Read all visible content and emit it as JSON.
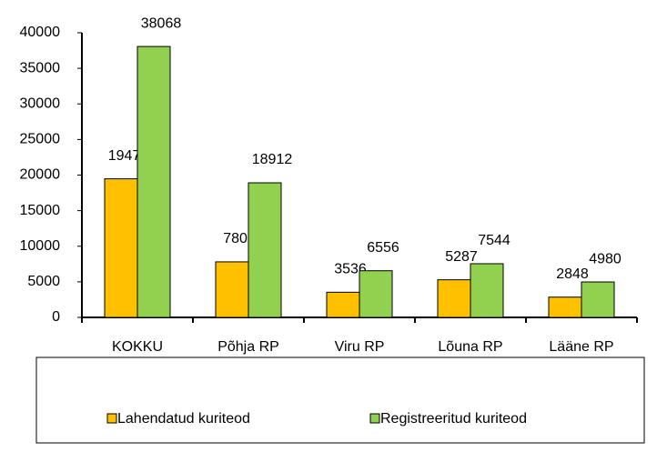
{
  "chart_data": {
    "type": "bar",
    "categories": [
      "KOKKU",
      "Põhja RP",
      "Viru RP",
      "Lõuna RP",
      "Lääne RP"
    ],
    "series": [
      {
        "name": "Lahendatud kuriteod",
        "color": "#FFC000",
        "values": [
          19476,
          7805,
          3536,
          5287,
          2848
        ]
      },
      {
        "name": "Registreeritud kuriteod",
        "color": "#92D050",
        "values": [
          38068,
          18912,
          6556,
          7544,
          4980
        ]
      }
    ],
    "ylim": [
      0,
      40000
    ],
    "yticks": [
      0,
      5000,
      10000,
      15000,
      20000,
      25000,
      30000,
      35000,
      40000
    ],
    "legend": "bottom"
  }
}
